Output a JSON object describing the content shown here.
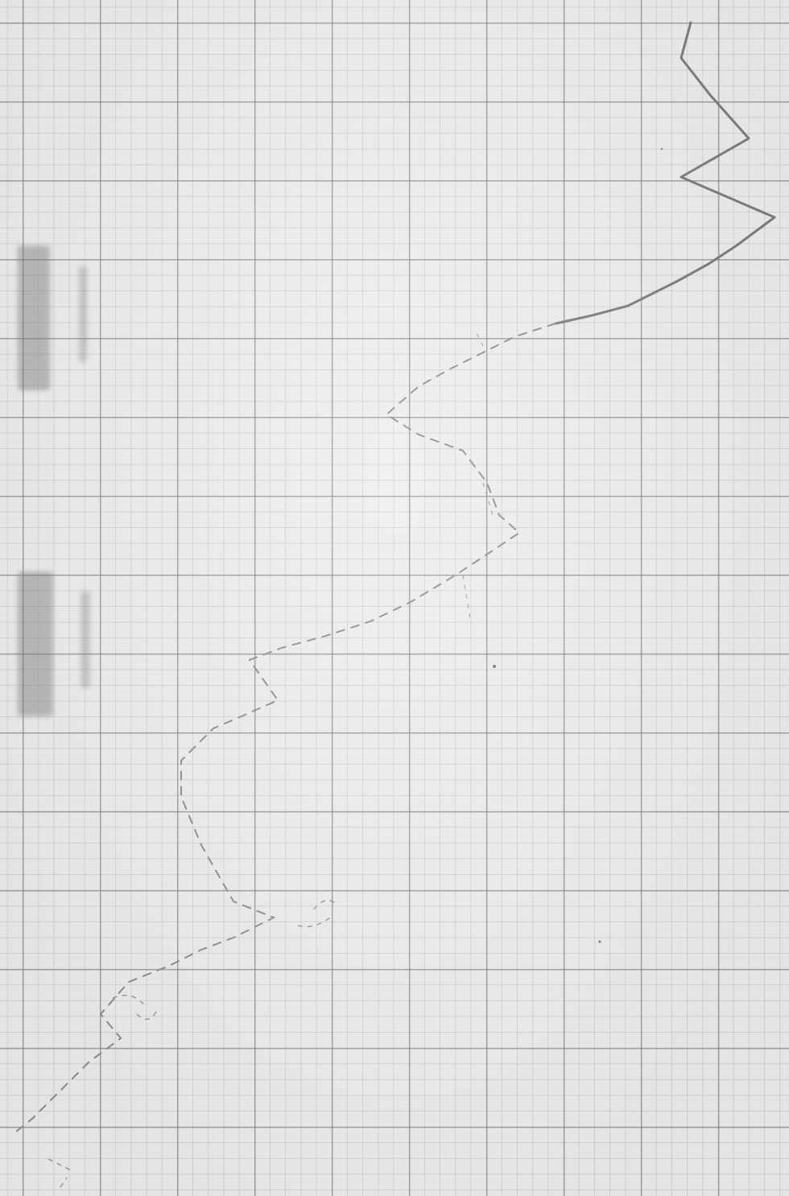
{
  "page": {
    "background": "#ededed",
    "grid_major_color": "#6e6e6e",
    "grid_minor_color": "#969696",
    "trace_color": "#7a7a7a"
  }
}
